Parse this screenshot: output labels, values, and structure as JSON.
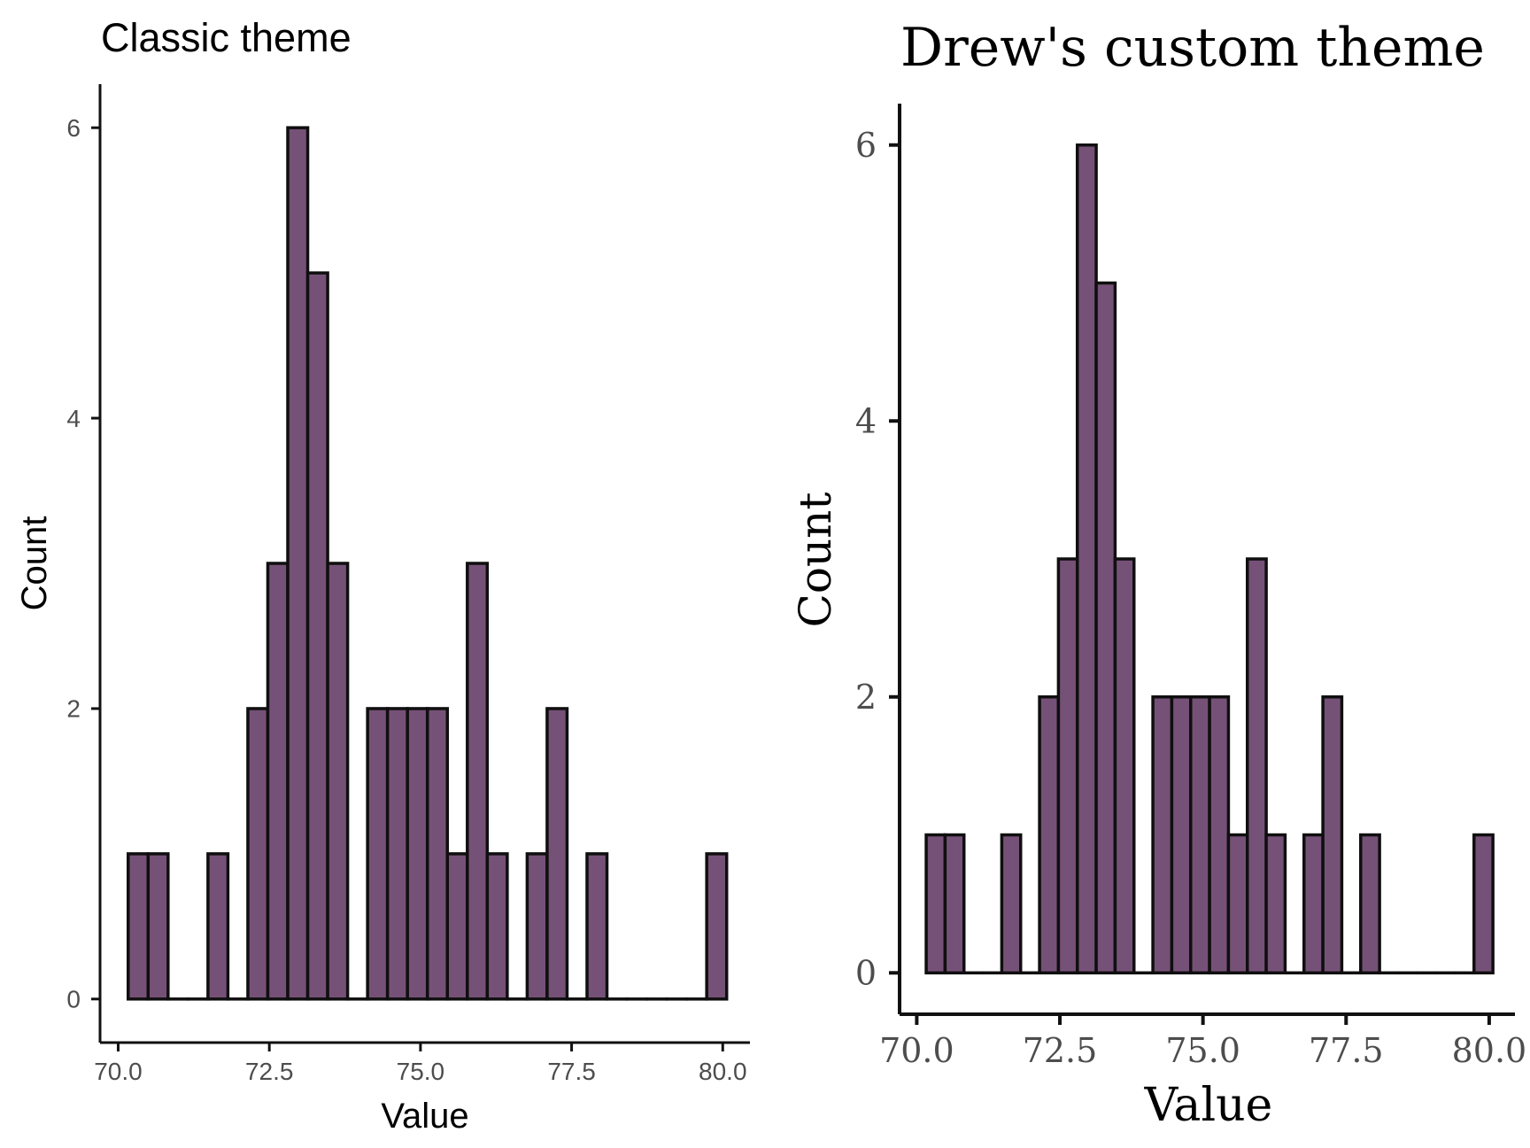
{
  "colors": {
    "bar_fill": "#765177",
    "bar_stroke": "#0f0f0f",
    "axis": "#111111",
    "tick_text": "#4d4d4d",
    "title_text": "#000000"
  },
  "chart_data": [
    {
      "type": "bar",
      "title": "Classic theme",
      "xlabel": "Value",
      "ylabel": "Count",
      "xlim": [
        69.7,
        80.45
      ],
      "ylim": [
        -0.3,
        6.3
      ],
      "xticks": [
        "70.0",
        "72.5",
        "75.0",
        "77.5",
        "80.0"
      ],
      "xtick_values": [
        70.0,
        72.5,
        75.0,
        77.5,
        80.0
      ],
      "yticks": [
        "0",
        "2",
        "4",
        "6"
      ],
      "ytick_values": [
        0,
        2,
        4,
        6
      ],
      "bin_width": 0.33,
      "bin_centers": [
        70.33,
        70.66,
        70.99,
        71.32,
        71.65,
        71.98,
        72.31,
        72.64,
        72.97,
        73.3,
        73.63,
        73.96,
        74.29,
        74.62,
        74.95,
        75.28,
        75.61,
        75.94,
        76.27,
        76.6,
        76.93,
        77.26,
        77.59,
        77.92,
        78.25,
        78.58,
        78.91,
        79.24,
        79.57,
        79.9
      ],
      "counts": [
        1,
        1,
        0,
        0,
        1,
        0,
        2,
        3,
        6,
        5,
        3,
        0,
        2,
        2,
        2,
        2,
        1,
        3,
        1,
        0,
        1,
        2,
        0,
        1,
        0,
        0,
        0,
        0,
        0,
        1
      ],
      "grid": false,
      "legend": "none"
    },
    {
      "type": "bar",
      "title": "Drew's custom theme",
      "xlabel": "Value",
      "ylabel": "Count",
      "xlim": [
        69.7,
        80.45
      ],
      "ylim": [
        -0.3,
        6.3
      ],
      "xticks": [
        "70.0",
        "72.5",
        "75.0",
        "77.5",
        "80.0"
      ],
      "xtick_values": [
        70.0,
        72.5,
        75.0,
        77.5,
        80.0
      ],
      "yticks": [
        "0",
        "2",
        "4",
        "6"
      ],
      "ytick_values": [
        0,
        2,
        4,
        6
      ],
      "bin_width": 0.33,
      "bin_centers": [
        70.33,
        70.66,
        70.99,
        71.32,
        71.65,
        71.98,
        72.31,
        72.64,
        72.97,
        73.3,
        73.63,
        73.96,
        74.29,
        74.62,
        74.95,
        75.28,
        75.61,
        75.94,
        76.27,
        76.6,
        76.93,
        77.26,
        77.59,
        77.92,
        78.25,
        78.58,
        78.91,
        79.24,
        79.57,
        79.9
      ],
      "counts": [
        1,
        1,
        0,
        0,
        1,
        0,
        2,
        3,
        6,
        5,
        3,
        0,
        2,
        2,
        2,
        2,
        1,
        3,
        1,
        0,
        1,
        2,
        0,
        1,
        0,
        0,
        0,
        0,
        0,
        1
      ],
      "grid": false,
      "legend": "none"
    }
  ]
}
